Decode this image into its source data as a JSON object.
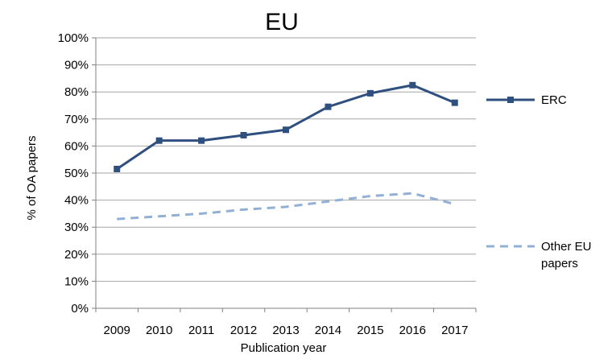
{
  "chart_data": {
    "type": "line",
    "title": "EU",
    "xlabel": "Publication year",
    "ylabel": "% of OA papers",
    "categories": [
      "2009",
      "2010",
      "2011",
      "2012",
      "2013",
      "2014",
      "2015",
      "2016",
      "2017"
    ],
    "ylim": [
      0,
      100
    ],
    "yticks": [
      "0%",
      "10%",
      "20%",
      "30%",
      "40%",
      "50%",
      "60%",
      "70%",
      "80%",
      "90%",
      "100%"
    ],
    "grid": true,
    "legend_position": "right",
    "series": [
      {
        "name": "ERC",
        "values": [
          51.5,
          62,
          62,
          64,
          66,
          74.5,
          79.5,
          82.5,
          76
        ],
        "color": "#2f4f7f",
        "style": "solid-with-square-markers"
      },
      {
        "name_lines": [
          "Other EU",
          "papers"
        ],
        "values": [
          33,
          34,
          35,
          36.5,
          37.5,
          39.5,
          41.5,
          42.5,
          38.5
        ],
        "color": "#92b0d6",
        "style": "dashed"
      }
    ]
  }
}
